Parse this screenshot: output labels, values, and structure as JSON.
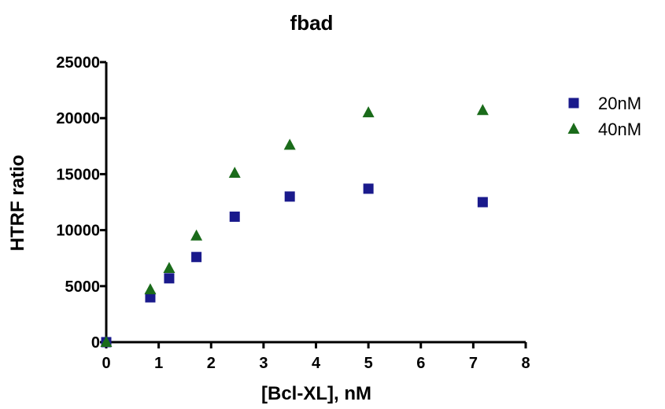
{
  "chart_data": {
    "type": "scatter",
    "title": "fbad",
    "xlabel": "[Bcl-XL], nM",
    "ylabel": "HTRF ratio",
    "xlim": [
      0,
      8
    ],
    "ylim": [
      0,
      25000
    ],
    "xticks": [
      0,
      1,
      2,
      3,
      4,
      5,
      6,
      7,
      8
    ],
    "yticks": [
      0,
      5000,
      10000,
      15000,
      20000,
      25000
    ],
    "grid": false,
    "legend_position": "top-right",
    "series": [
      {
        "name": "20nM",
        "marker": "square",
        "color": "#1a1a8c",
        "x": [
          0,
          0.84,
          1.2,
          1.72,
          2.45,
          3.5,
          5.0,
          7.18
        ],
        "y": [
          0,
          4000,
          5700,
          7600,
          11200,
          13000,
          13700,
          12500
        ]
      },
      {
        "name": "40nM",
        "marker": "triangle",
        "color": "#1a6b1a",
        "x": [
          0,
          0.84,
          1.2,
          1.72,
          2.45,
          3.5,
          5.0,
          7.18
        ],
        "y": [
          0,
          4700,
          6600,
          9500,
          15100,
          17600,
          20500,
          20700
        ]
      }
    ]
  }
}
